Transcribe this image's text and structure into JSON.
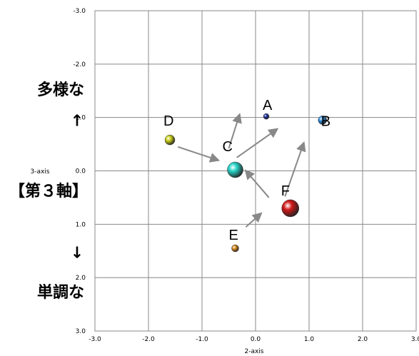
{
  "chart_data": {
    "type": "scatter",
    "xlabel": "2-axis",
    "ylabel": "3-axis",
    "xlim": [
      -3.0,
      3.0
    ],
    "ylim": [
      -3.0,
      3.0
    ],
    "y_inverted": true,
    "grid": true,
    "x_ticks": [
      "-3.0",
      "-2.0",
      "-1.0",
      "0.0",
      "1.0",
      "2.0",
      "3.0"
    ],
    "y_ticks": [
      "-3.0",
      "-2.0",
      "-1.0",
      "0.0",
      "1.0",
      "2.0",
      "3.0"
    ],
    "points": [
      {
        "label": "A",
        "x": 0.2,
        "y": -1.02,
        "color": "#1a2fa0"
      },
      {
        "label": "B",
        "x": 1.25,
        "y": -0.95,
        "color": "#2f8fe0"
      },
      {
        "label": "C",
        "x": -0.38,
        "y": -0.02,
        "color": "#27d4c8"
      },
      {
        "label": "D",
        "x": -1.6,
        "y": -0.58,
        "color": "#c9cf1a"
      },
      {
        "label": "E",
        "x": -0.38,
        "y": 1.45,
        "color": "#d98a1c"
      },
      {
        "label": "F",
        "x": 0.65,
        "y": 0.7,
        "color": "#d11818"
      }
    ],
    "arrows": [
      {
        "x1": -1.45,
        "y1": -0.45,
        "x2": -0.7,
        "y2": -0.2
      },
      {
        "x1": -0.5,
        "y1": -0.42,
        "x2": -0.3,
        "y2": -1.05
      },
      {
        "x1": -0.35,
        "y1": -0.25,
        "x2": 0.4,
        "y2": -0.78
      },
      {
        "x1": 0.25,
        "y1": 0.5,
        "x2": -0.18,
        "y2": 0.0
      },
      {
        "x1": 0.55,
        "y1": 0.48,
        "x2": 0.9,
        "y2": -0.52
      },
      {
        "x1": -0.18,
        "y1": 1.05,
        "x2": 0.1,
        "y2": 0.8
      }
    ]
  },
  "side_labels": {
    "top": "多様な",
    "up_arrow": "↑",
    "middle": "【第３軸】",
    "down_arrow": "↓",
    "bottom": "単調な"
  }
}
